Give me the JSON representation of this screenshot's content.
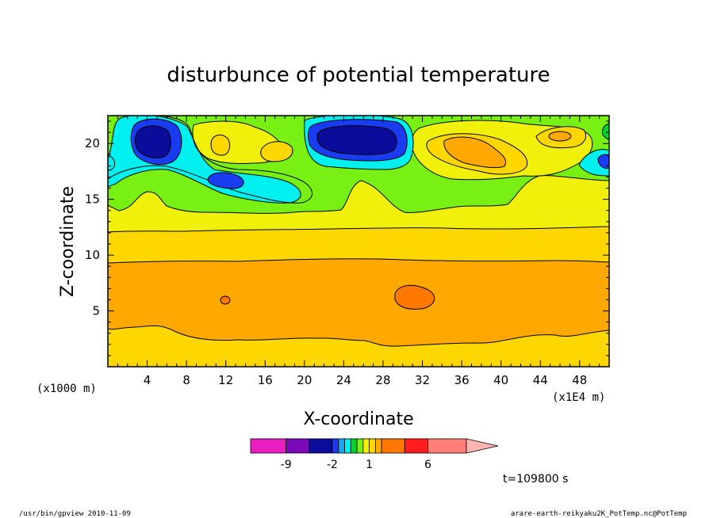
{
  "chart_data": {
    "type": "heatmap",
    "title": "disturbunce of potential temperature",
    "xlabel": "X-coordinate",
    "ylabel": "Z-coordinate",
    "x_unit": "(x1000 m)",
    "x_multiplier": "(x1E4 m)",
    "x_ticks": [
      "4",
      "8",
      "12",
      "16",
      "20",
      "24",
      "28",
      "32",
      "36",
      "40",
      "44",
      "48"
    ],
    "y_ticks": [
      "5",
      "10",
      "15",
      "20"
    ],
    "xlim": [
      0,
      51
    ],
    "ylim": [
      0,
      22.5
    ],
    "colorbar": {
      "levels": [
        -13,
        -9,
        -6,
        -2,
        -1.5,
        -1,
        -0.5,
        0,
        0.5,
        1,
        1.5,
        2,
        4,
        6,
        8,
        12
      ],
      "colors": [
        "#e81ec0",
        "#7a0ab8",
        "#0c0c9c",
        "#1a3cf0",
        "#19a8f0",
        "#00f0f0",
        "#00d232",
        "#78f014",
        "#f0f00a",
        "#ffd700",
        "#ffa800",
        "#ff7800",
        "#ff1e1e",
        "#ff7e78",
        "#ffb6b2"
      ],
      "tick_labels": [
        "-9",
        "-2",
        "1",
        "6"
      ]
    },
    "time_label": "t=109800 s"
  },
  "footer": {
    "left": "/usr/bin/gpview  2010-11-09",
    "right": "arare-earth-reikyaku2K_PotTemp.nc@PotTemp"
  }
}
